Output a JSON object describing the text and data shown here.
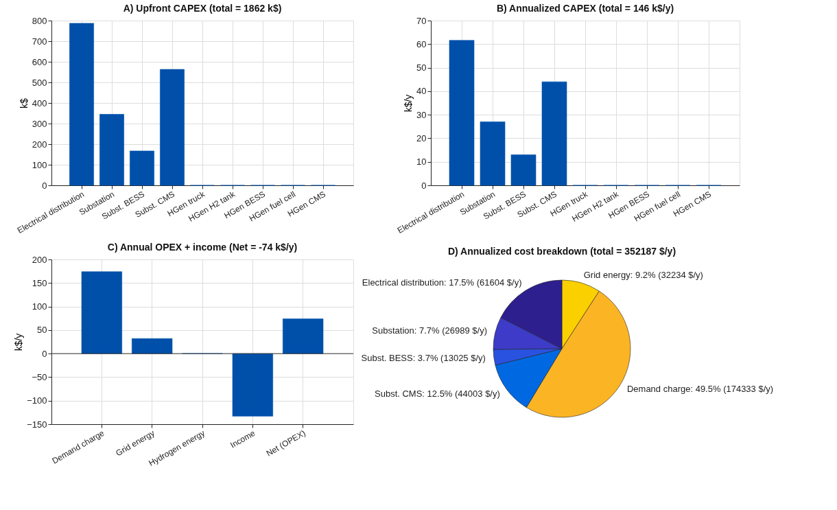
{
  "chart_data": [
    {
      "type": "bar",
      "title": "A) Upfront CAPEX (total = 1862 k$)",
      "ylabel": "k$",
      "categories": [
        "Electrical distribution",
        "Substation",
        "Subst. BESS",
        "Subst. CMS",
        "HGen truck",
        "HGen H2 tank",
        "HGen BESS",
        "HGen fuel cell",
        "HGen CMS"
      ],
      "values": [
        787,
        345,
        167,
        563,
        0,
        0,
        0,
        0,
        0
      ],
      "color": "#0050aa",
      "ylim": [
        0,
        800
      ],
      "yticks": [
        0,
        100,
        200,
        300,
        400,
        500,
        600,
        700,
        800
      ],
      "grid": true
    },
    {
      "type": "bar",
      "title": "B) Annualized CAPEX (total = 146 k$/y)",
      "ylabel": "k$/y",
      "categories": [
        "Electrical distribution",
        "Substation",
        "Subst. BESS",
        "Subst. CMS",
        "HGen truck",
        "HGen H2 tank",
        "HGen BESS",
        "HGen fuel cell",
        "HGen CMS"
      ],
      "values": [
        61.6,
        27.0,
        13.0,
        44.0,
        0,
        0,
        0,
        0,
        0
      ],
      "color": "#0050aa",
      "ylim": [
        0,
        70
      ],
      "yticks": [
        0,
        10,
        20,
        30,
        40,
        50,
        60,
        70
      ],
      "grid": true
    },
    {
      "type": "bar",
      "title": "C) Annual OPEX + income (Net = -74 k$/y)",
      "ylabel": "k$/y",
      "categories": [
        "Demand charge",
        "Grid energy",
        "Hydrogen energy",
        "Income",
        "Net (OPEX)"
      ],
      "values": [
        174,
        32,
        0,
        -133,
        74
      ],
      "color": "#0050aa",
      "ylim": [
        -150,
        200
      ],
      "yticks": [
        -150,
        -100,
        -50,
        0,
        50,
        100,
        150,
        200
      ],
      "grid": true,
      "ref_lines": [
        {
          "axis": "y",
          "value": 0,
          "color": "#333333"
        }
      ]
    },
    {
      "type": "pie",
      "title": "D) Annualized cost breakdown (total = 352187 $/y)",
      "categories": [
        "Grid energy",
        "Demand charge",
        "Subst. CMS",
        "Subst. BESS",
        "Substation",
        "Electrical distribution"
      ],
      "values": [
        32234,
        174333,
        44003,
        13025,
        26989,
        61604
      ],
      "colors": [
        "#fbd000",
        "#fbb424",
        "#0068e0",
        "#2a52e0",
        "#3d3bc8",
        "#2e1f8f"
      ],
      "value_labels": [
        "9.2% (32234 $/y)",
        "49.5% (174333 $/y)",
        "12.5% (44003 $/y)",
        "3.7% (13025 $/y)",
        "7.7% (26989 $/y)",
        "17.5% (61604 $/y)"
      ]
    }
  ]
}
